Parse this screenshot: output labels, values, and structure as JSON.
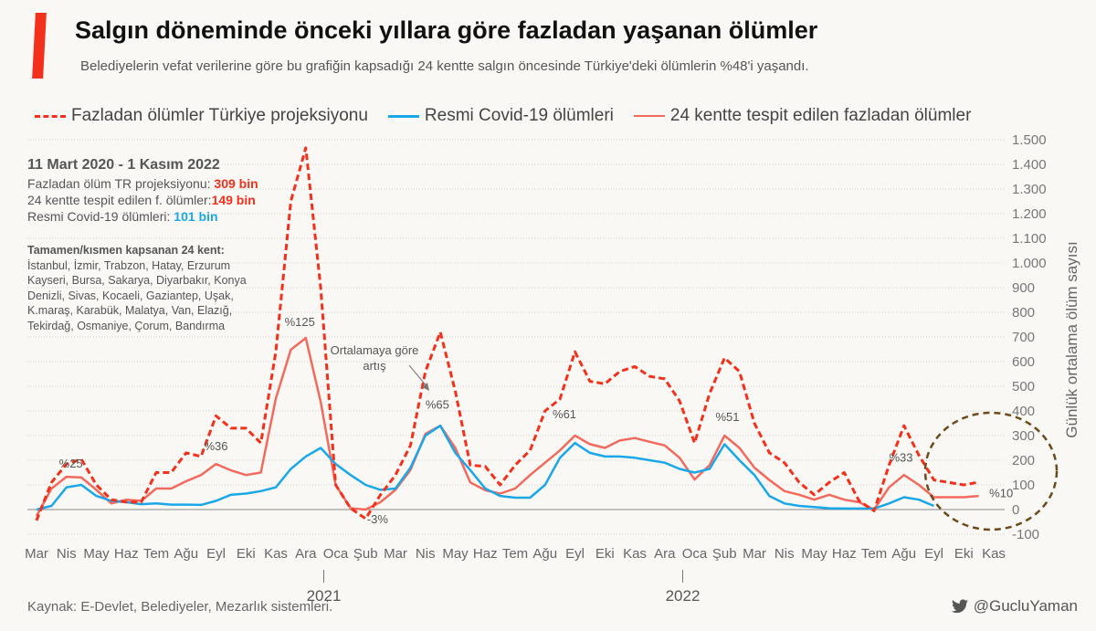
{
  "header": {
    "title": "Salgın döneminde önceki yıllara göre fazladan yaşanan ölümler",
    "subtitle": "Belediyelerin vefat verilerine göre bu grafiğin kapsadığı 24 kentte salgın öncesinde Türkiye'deki ölümlerin %48'i yaşandı."
  },
  "info": {
    "date_range": "11 Mart 2020 -  1 Kasım 2022",
    "line1_label": "Fazladan ölüm TR projeksiyonu: ",
    "line1_value": "309 bin",
    "line2_label": "24 kentte tespit edilen f. ölümler:",
    "line2_value": "149 bin",
    "line3_label": "Resmi Covid-19 ölümleri: ",
    "line3_value": "101 bin",
    "cities_heading": "Tamamen/kısmen kapsanan 24 kent:",
    "cities_lines": [
      "İstanbul, İzmir, Trabzon, Hatay, Erzurum",
      "Kayseri, Bursa, Sakarya, Diyarbakır, Konya",
      "Denizli, Sivas, Kocaeli, Gaziantep, Uşak,",
      "K.maraş, Karabük, Malatya, Van, Elazığ,",
      "Tekirdağ, Osmaniye, Çorum, Bandırma"
    ]
  },
  "footer": {
    "source": "Kaynak: E-Devlet, Belediyeler, Mezarlık sistemleri.",
    "handle": "@GucluYaman"
  },
  "colors": {
    "projection": "#f2301b",
    "cities": "#f26a5e",
    "official": "#1aa7e8",
    "circle": "#6b4a1e"
  },
  "chart_data": {
    "type": "line",
    "ylabel": "Günlük ortalama ölüm sayısı",
    "ylim": [
      -100,
      1500
    ],
    "yticks": [
      -100,
      0,
      100,
      200,
      300,
      400,
      500,
      600,
      700,
      800,
      900,
      1000,
      1100,
      1200,
      1300,
      1400,
      1500
    ],
    "ytick_labels": [
      "-100",
      "0",
      "100",
      "200",
      "300",
      "400",
      "500",
      "600",
      "700",
      "800",
      "900",
      "1.000",
      "1.100",
      "1.200",
      "1.300",
      "1.400",
      "1.500"
    ],
    "month_labels": [
      "Mar",
      "Nis",
      "May",
      "Haz",
      "Tem",
      "Ağu",
      "Eyl",
      "Eki",
      "Kas",
      "Ara",
      "Oca",
      "Şub",
      "Mar",
      "Nis",
      "May",
      "Haz",
      "Tem",
      "Ağu",
      "Eyl",
      "Eki",
      "Kas",
      "Ara",
      "Oca",
      "Şub",
      "Mar",
      "Nis",
      "May",
      "Haz",
      "Tem",
      "Ağu",
      "Eyl",
      "Eki",
      "Kas"
    ],
    "year_labels": [
      {
        "label": "2021",
        "month_index": 10
      },
      {
        "label": "2022",
        "month_index": 22
      }
    ],
    "grid": "horizontal dotted",
    "legend": "top",
    "x_start": "2020-03-01",
    "x_step": "half-month",
    "series": [
      {
        "name": "Fazladan ölümler Türkiye projeksiyonu",
        "style": "dashed",
        "color": "#f2301b",
        "values": [
          -44,
          110,
          185,
          204,
          100,
          40,
          30,
          30,
          150,
          150,
          230,
          215,
          380,
          330,
          330,
          270,
          640,
          1250,
          1467,
          900,
          100,
          5,
          -37,
          60,
          140,
          260,
          560,
          720,
          480,
          180,
          175,
          100,
          180,
          240,
          400,
          448,
          640,
          520,
          510,
          560,
          580,
          540,
          530,
          440,
          270,
          470,
          615,
          560,
          350,
          230,
          190,
          110,
          60,
          110,
          150,
          35,
          -5,
          180,
          340,
          220,
          120,
          110,
          100,
          111
        ]
      },
      {
        "name": "Resmi Covid-19 ölümleri",
        "style": "solid",
        "color": "#1aa7e8",
        "values": [
          0,
          15,
          90,
          100,
          55,
          35,
          30,
          22,
          25,
          20,
          20,
          19,
          35,
          60,
          65,
          75,
          90,
          165,
          215,
          250,
          185,
          140,
          100,
          80,
          85,
          170,
          300,
          340,
          230,
          160,
          85,
          55,
          48,
          48,
          100,
          210,
          270,
          230,
          215,
          215,
          210,
          200,
          190,
          165,
          150,
          165,
          265,
          200,
          140,
          55,
          25,
          15,
          10,
          5,
          4,
          4,
          4,
          25,
          50,
          40,
          15
        ]
      },
      {
        "name": "24 kentte tespit edilen fazladan ölümler",
        "style": "solid",
        "color": "#f26a5e",
        "values": [
          -26,
          85,
          133,
          130,
          80,
          25,
          40,
          35,
          85,
          85,
          115,
          140,
          185,
          159,
          140,
          150,
          450,
          648,
          696,
          437,
          100,
          5,
          0,
          30,
          80,
          160,
          307,
          340,
          250,
          110,
          78,
          65,
          85,
          140,
          190,
          240,
          300,
          265,
          250,
          280,
          290,
          275,
          260,
          210,
          122,
          180,
          300,
          250,
          170,
          120,
          75,
          60,
          40,
          60,
          40,
          30,
          0,
          90,
          140,
          100,
          50,
          50,
          50,
          55
        ]
      }
    ],
    "annotations": [
      {
        "text": "%25",
        "k": 2.3,
        "y": 170
      },
      {
        "text": "%36",
        "k": 12,
        "y": 240
      },
      {
        "text": "%125",
        "k": 17.6,
        "y": 745
      },
      {
        "text": "%65",
        "k": 26.8,
        "y": 410
      },
      {
        "text": "-3%",
        "k": 22.8,
        "y": -55
      },
      {
        "text": "%61",
        "k": 35.3,
        "y": 370
      },
      {
        "text": "%51",
        "k": 46.2,
        "y": 360
      },
      {
        "text": "%33",
        "k": 57.8,
        "y": 195
      },
      {
        "text": "%10",
        "k": 64.5,
        "y": 50
      }
    ],
    "note": {
      "line1": "Ortalamaya göre",
      "line2": "artış"
    }
  }
}
